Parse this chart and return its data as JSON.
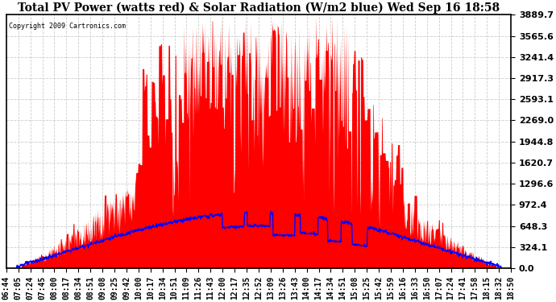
{
  "title": "Total PV Power (watts red) & Solar Radiation (W/m2 blue) Wed Sep 16 18:58",
  "copyright": "Copyright 2009 Cartronics.com",
  "x_labels": [
    "06:44",
    "07:05",
    "07:24",
    "07:45",
    "08:00",
    "08:17",
    "08:34",
    "08:51",
    "09:08",
    "09:25",
    "09:42",
    "10:00",
    "10:17",
    "10:34",
    "10:51",
    "11:09",
    "11:26",
    "11:43",
    "12:00",
    "12:17",
    "12:35",
    "12:52",
    "13:09",
    "13:26",
    "13:43",
    "14:00",
    "14:17",
    "14:34",
    "14:51",
    "15:08",
    "15:25",
    "15:42",
    "15:59",
    "16:16",
    "16:33",
    "16:50",
    "17:07",
    "17:24",
    "17:41",
    "17:58",
    "18:15",
    "18:32",
    "18:50"
  ],
  "y_ticks": [
    0.0,
    324.1,
    648.3,
    972.4,
    1296.6,
    1620.7,
    1944.8,
    2269.0,
    2593.1,
    2917.3,
    3241.4,
    3565.6,
    3889.7
  ],
  "y_max": 3889.7,
  "background_color": "#ffffff",
  "grid_color": "#cccccc",
  "red_color": "#ff0000",
  "blue_color": "#0000ff",
  "title_fontsize": 10,
  "tick_fontsize": 7
}
